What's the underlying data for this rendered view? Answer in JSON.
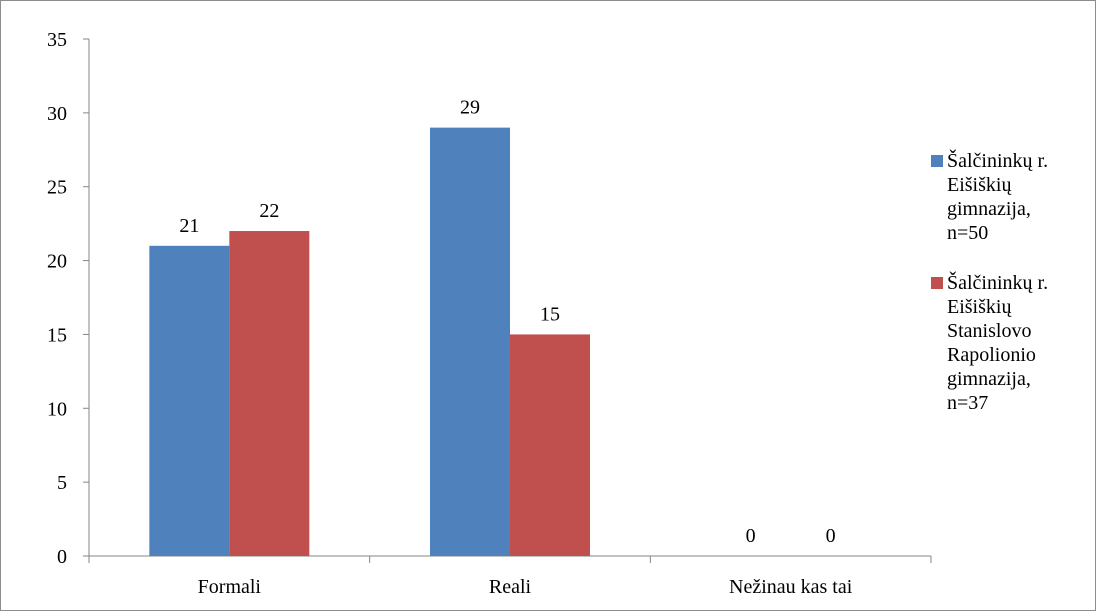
{
  "chart_data": {
    "type": "bar",
    "categories": [
      "Formali",
      "Reali",
      "Nežinau kas tai"
    ],
    "series": [
      {
        "name": "Šalčininkų r. Eišiškių gimnazija, n=50",
        "values": [
          21,
          29,
          0
        ],
        "color": "#4f81bd"
      },
      {
        "name": "Šalčininkų r. Eišiškių Stanislovo Rapolionio gimnazija, n=37",
        "values": [
          22,
          15,
          0
        ],
        "color": "#c0504d"
      }
    ],
    "ylim": [
      0,
      35
    ],
    "yticks": [
      0,
      5,
      10,
      15,
      20,
      25,
      30,
      35
    ],
    "grid": false,
    "legend_position": "right",
    "data_labels": true
  }
}
